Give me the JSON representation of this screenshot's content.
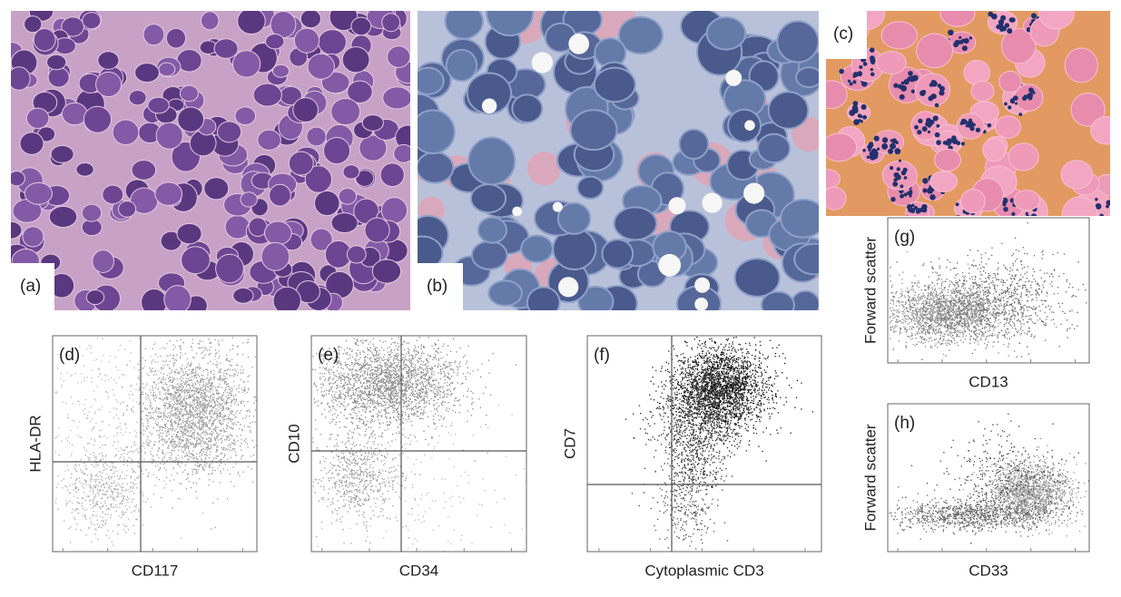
{
  "panels": [
    {
      "label": "(a)"
    },
    {
      "label": "(b)"
    },
    {
      "label": "(c)"
    },
    {
      "label": "(d)",
      "x_label": "CD117",
      "y_label": "HLA-DR"
    },
    {
      "label": "(e)",
      "x_label": "CD34",
      "y_label": "CD10"
    },
    {
      "label": "(f)",
      "x_label": "Cytoplasmic CD3",
      "y_label": "CD7"
    },
    {
      "label": "(g)",
      "x_label": "CD13",
      "y_label": "Forward scatter"
    },
    {
      "label": "(h)",
      "x_label": "CD33",
      "y_label": "Forward scatter"
    }
  ]
}
